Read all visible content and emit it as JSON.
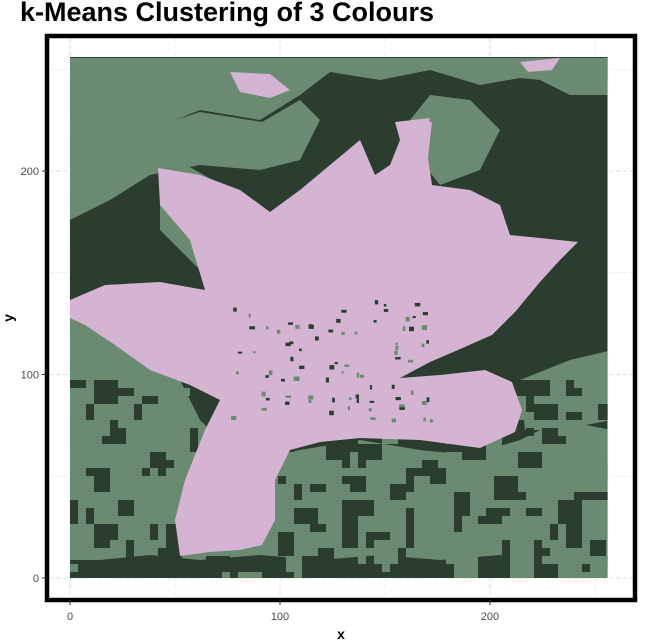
{
  "chart_data": {
    "type": "heatmap",
    "title": "k-Means Clustering of 3 Colours",
    "xlabel": "x",
    "ylabel": "y",
    "xlim": [
      -10,
      266
    ],
    "ylim": [
      -10,
      266
    ],
    "x_ticks": [
      0,
      100,
      200
    ],
    "y_ticks": [
      0,
      100,
      200
    ],
    "grid": true,
    "legend": "none",
    "image_extent": {
      "x": [
        0,
        256
      ],
      "y": [
        0,
        256
      ]
    },
    "clusters": [
      {
        "id": 1,
        "color": "#2b3d2e",
        "role": "dark green background"
      },
      {
        "id": 2,
        "color": "#6a8a72",
        "role": "mid green foliage"
      },
      {
        "id": 3,
        "color": "#d4b3d3",
        "role": "pink flower"
      }
    ]
  }
}
